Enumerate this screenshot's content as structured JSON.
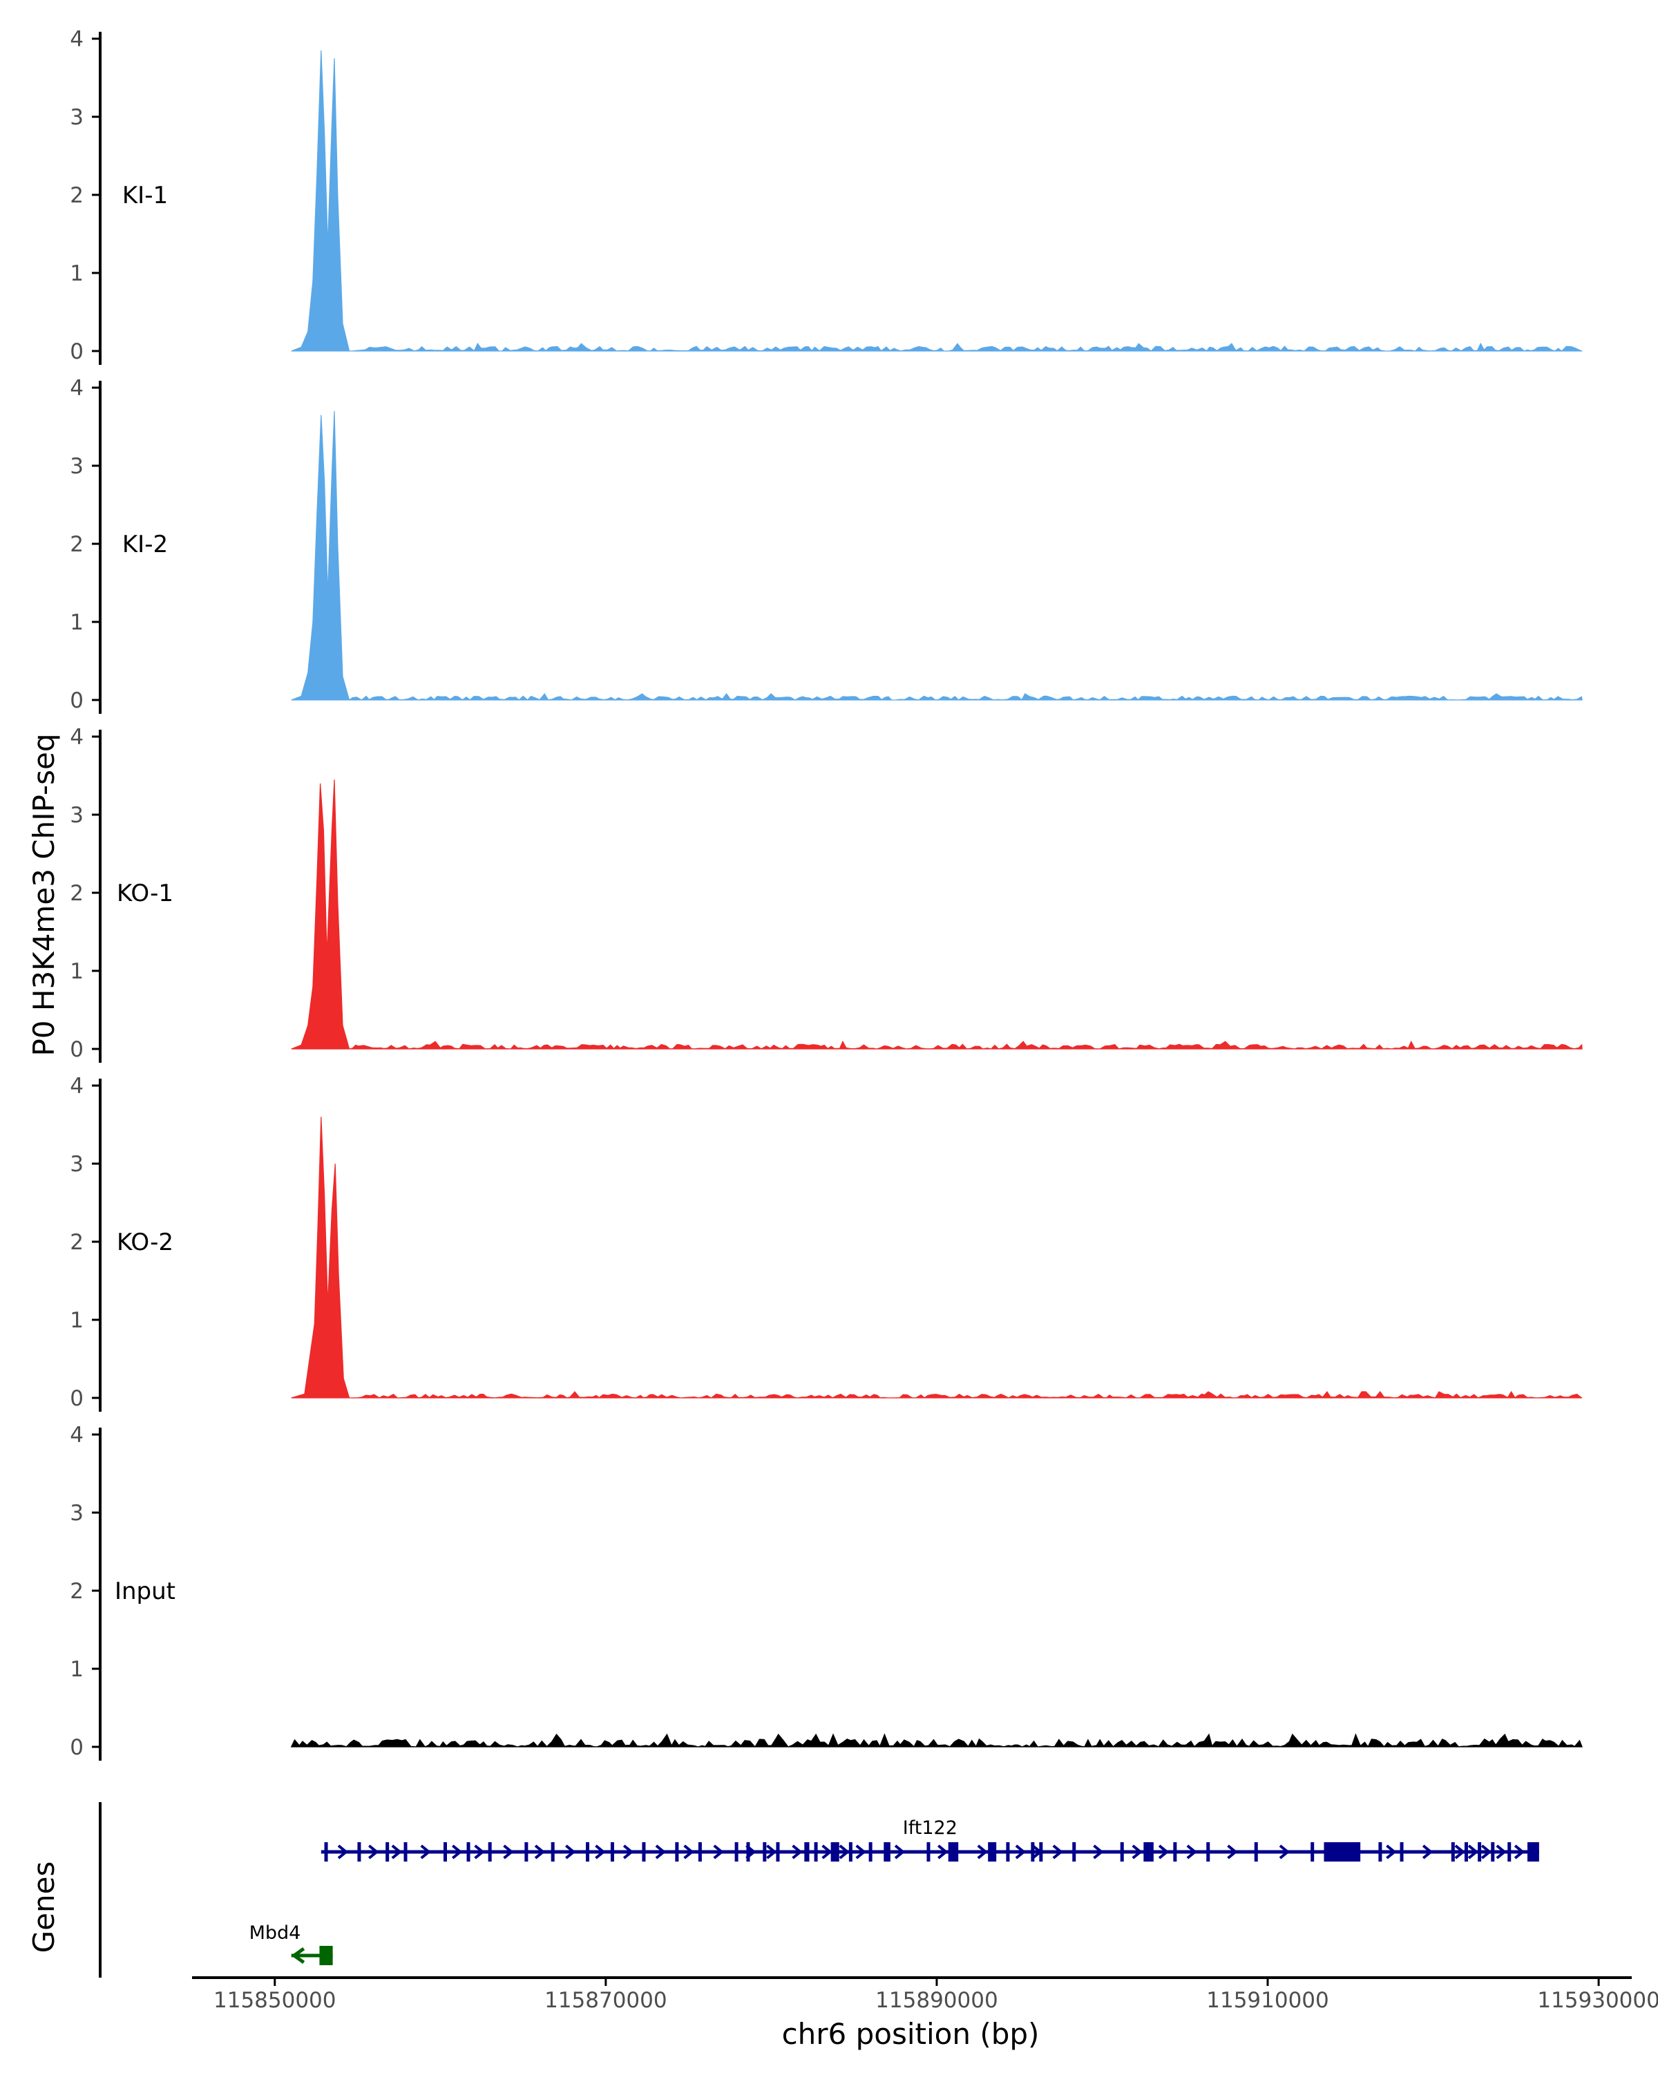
{
  "chart_data": {
    "type": "area",
    "ylabel": "P0 H3K4me3 ChIP-seq",
    "xlabel": "chr6 position (bp)",
    "xlim": [
      115845000,
      115932000
    ],
    "ylim": [
      0,
      4
    ],
    "y_ticks": [
      "0",
      "1",
      "2",
      "3",
      "4"
    ],
    "x_ticks": [
      {
        "value": 115850000,
        "label": "115850000"
      },
      {
        "value": 115870000,
        "label": "115870000"
      },
      {
        "value": 115890000,
        "label": "115890000"
      },
      {
        "value": 115910000,
        "label": "115910000"
      },
      {
        "value": 115930000,
        "label": "115930000"
      }
    ],
    "signal_range": [
      115851000,
      115929000
    ],
    "series": [
      {
        "name": "KI-1",
        "color": "#5ba8e8",
        "points": [
          [
            115851000,
            0
          ],
          [
            115851600,
            0.05
          ],
          [
            115852000,
            0.25
          ],
          [
            115852300,
            0.9
          ],
          [
            115852550,
            2.3
          ],
          [
            115852800,
            3.85
          ],
          [
            115853000,
            2.8
          ],
          [
            115853200,
            1.35
          ],
          [
            115853450,
            2.9
          ],
          [
            115853600,
            3.75
          ],
          [
            115853800,
            2.0
          ],
          [
            115854100,
            0.35
          ],
          [
            115854500,
            0
          ],
          [
            115929000,
            0
          ]
        ],
        "noise_max": 0.06
      },
      {
        "name": "KI-2",
        "color": "#5ba8e8",
        "points": [
          [
            115851000,
            0
          ],
          [
            115851600,
            0.05
          ],
          [
            115852000,
            0.35
          ],
          [
            115852300,
            1.0
          ],
          [
            115852550,
            2.4
          ],
          [
            115852800,
            3.65
          ],
          [
            115853000,
            2.8
          ],
          [
            115853200,
            1.35
          ],
          [
            115853450,
            2.9
          ],
          [
            115853600,
            3.7
          ],
          [
            115853800,
            2.0
          ],
          [
            115854100,
            0.3
          ],
          [
            115854500,
            0
          ],
          [
            115929000,
            0
          ]
        ],
        "noise_max": 0.05
      },
      {
        "name": "KO-1",
        "color": "#ee2a2a",
        "points": [
          [
            115851000,
            0
          ],
          [
            115851600,
            0.05
          ],
          [
            115852000,
            0.3
          ],
          [
            115852300,
            0.8
          ],
          [
            115852550,
            2.2
          ],
          [
            115852750,
            3.4
          ],
          [
            115852950,
            2.8
          ],
          [
            115853150,
            1.2
          ],
          [
            115853450,
            2.8
          ],
          [
            115853600,
            3.45
          ],
          [
            115853800,
            1.9
          ],
          [
            115854100,
            0.3
          ],
          [
            115854500,
            0
          ],
          [
            115929000,
            0
          ]
        ],
        "noise_max": 0.06
      },
      {
        "name": "KO-2",
        "color": "#ee2a2a",
        "points": [
          [
            115851000,
            0
          ],
          [
            115851800,
            0.05
          ],
          [
            115852100,
            0.5
          ],
          [
            115852400,
            0.95
          ],
          [
            115852600,
            2.2
          ],
          [
            115852800,
            3.6
          ],
          [
            115853000,
            2.6
          ],
          [
            115853200,
            1.2
          ],
          [
            115853450,
            2.4
          ],
          [
            115853650,
            3.0
          ],
          [
            115853850,
            1.6
          ],
          [
            115854150,
            0.25
          ],
          [
            115854500,
            0
          ],
          [
            115929000,
            0
          ]
        ],
        "noise_max": 0.05
      },
      {
        "name": "Input",
        "color": "#000000",
        "points": [
          [
            115851000,
            0
          ],
          [
            115929000,
            0
          ]
        ],
        "noise_max": 0.1
      }
    ],
    "genes_track_label": "Genes",
    "genes": [
      {
        "name": "Ift122",
        "color": "#00008b",
        "strand": "+",
        "start": 115852800,
        "end": 115926400,
        "exons": [
          115853100,
          115855100,
          115856800,
          115857900,
          115860300,
          115861700,
          115863000,
          115865200,
          115866800,
          115868900,
          115870400,
          115872300,
          115874300,
          115875700,
          115877900,
          115879600,
          115880400,
          115882700,
          115884000,
          115884800,
          115886000,
          115889500,
          115891200,
          115894300,
          115895800,
          115896300,
          115898300,
          115901200,
          115903000,
          115904400,
          115906400,
          115909300,
          115912700,
          115916800,
          115918100,
          115921200,
          115922000,
          115922800,
          115923600,
          115924600,
          115925800
        ],
        "thick_exons": [
          [
            115878500,
            115878700
          ],
          [
            115882000,
            115882300
          ],
          [
            115883600,
            115884000
          ],
          [
            115886800,
            115887200
          ],
          [
            115890700,
            115891200
          ],
          [
            115893100,
            115893600
          ],
          [
            115902500,
            115902900
          ],
          [
            115913400,
            115915600
          ],
          [
            115925900,
            115926400
          ]
        ]
      },
      {
        "name": "Mbd4",
        "color": "#006400",
        "strand": "-",
        "start": 115851000,
        "end": 115853500,
        "exons": [],
        "thick_exons": [
          [
            115852700,
            115853500
          ]
        ]
      }
    ]
  }
}
